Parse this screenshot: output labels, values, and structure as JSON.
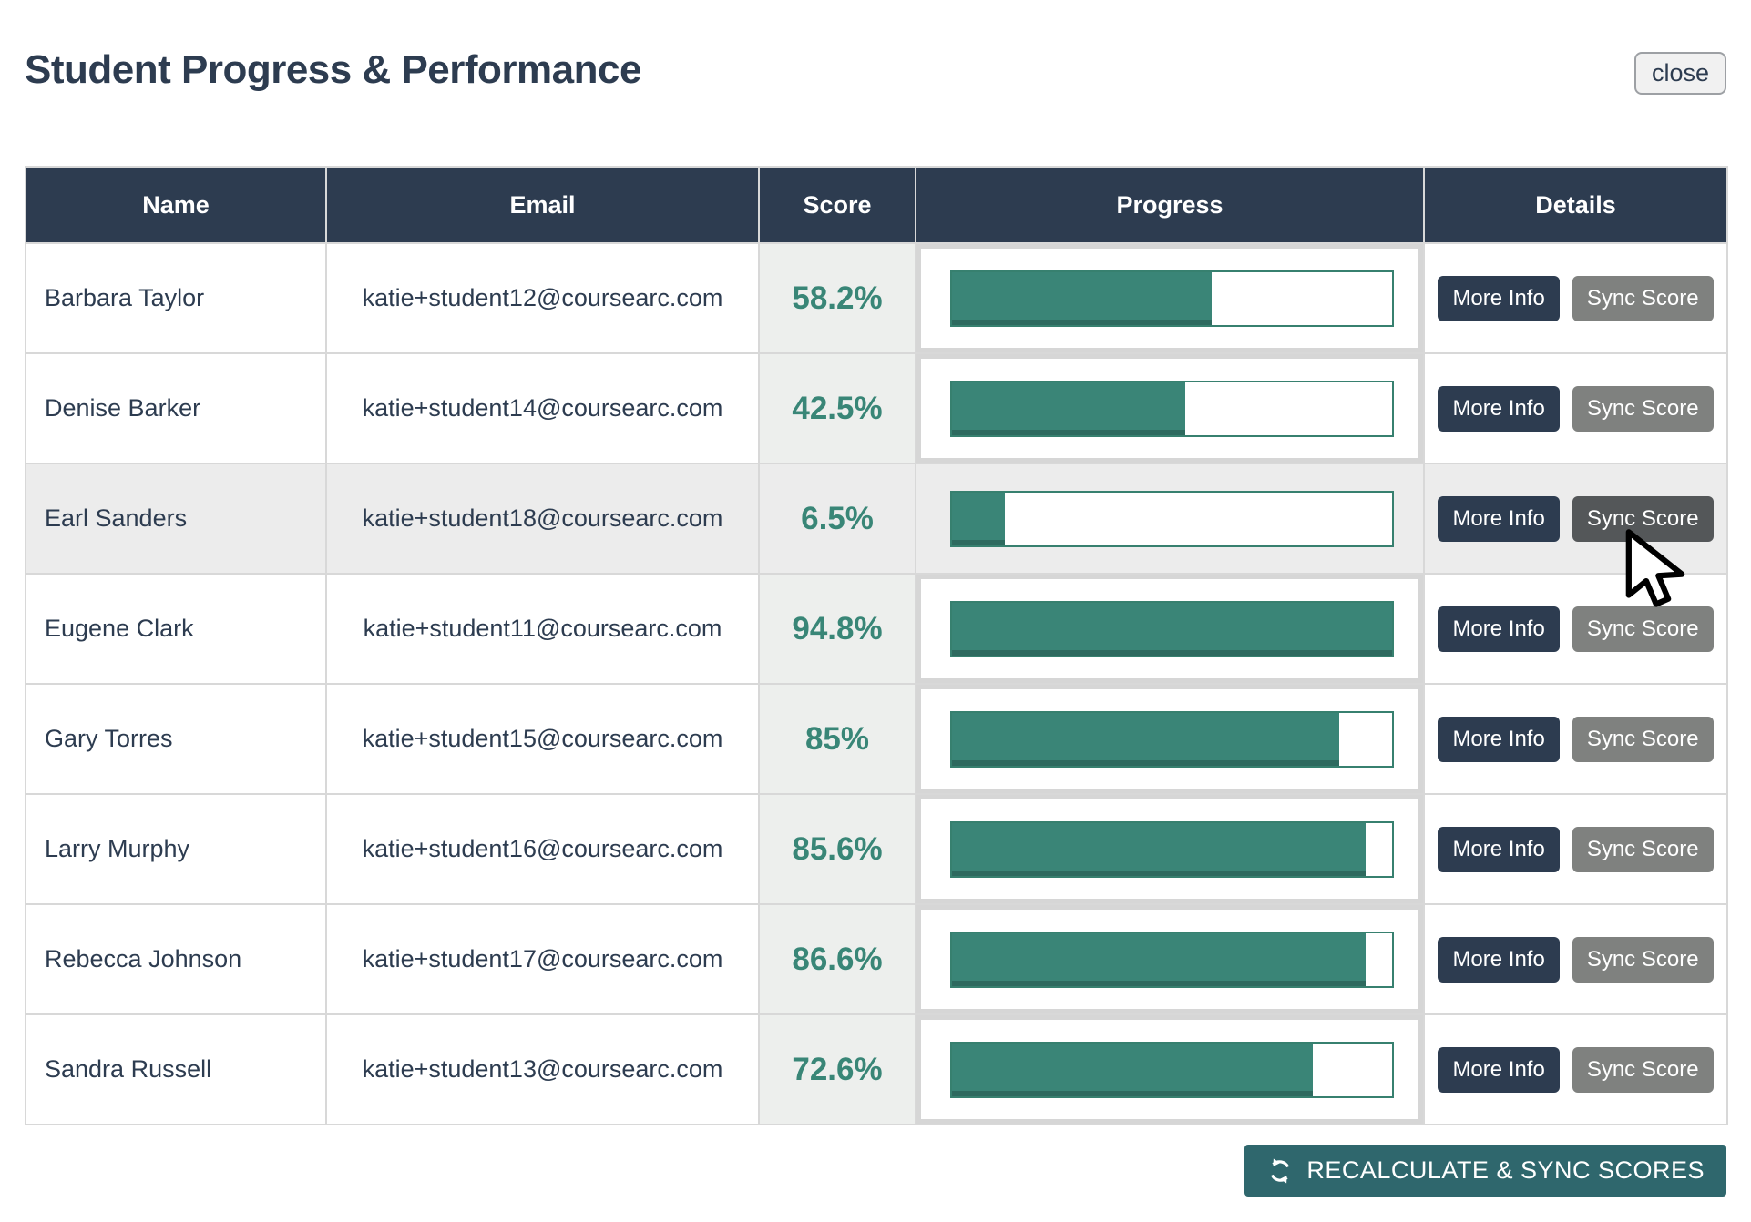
{
  "header": {
    "title": "Student Progress & Performance",
    "close_button": "close"
  },
  "table": {
    "columns": [
      "Name",
      "Email",
      "Score",
      "Progress",
      "Details"
    ],
    "row_buttons": {
      "more_info": "More Info",
      "sync_score": "Sync Score"
    },
    "rows": [
      {
        "name": "Barbara Taylor",
        "email": "katie+student12@coursearc.com",
        "score": "58.2%",
        "progress_pct": 59
      },
      {
        "name": "Denise Barker",
        "email": "katie+student14@coursearc.com",
        "score": "42.5%",
        "progress_pct": 53
      },
      {
        "name": "Earl Sanders",
        "email": "katie+student18@coursearc.com",
        "score": "6.5%",
        "progress_pct": 12
      },
      {
        "name": "Eugene Clark",
        "email": "katie+student11@coursearc.com",
        "score": "94.8%",
        "progress_pct": 100
      },
      {
        "name": "Gary Torres",
        "email": "katie+student15@coursearc.com",
        "score": "85%",
        "progress_pct": 88
      },
      {
        "name": "Larry Murphy",
        "email": "katie+student16@coursearc.com",
        "score": "85.6%",
        "progress_pct": 94
      },
      {
        "name": "Rebecca Johnson",
        "email": "katie+student17@coursearc.com",
        "score": "86.6%",
        "progress_pct": 94
      },
      {
        "name": "Sandra Russell",
        "email": "katie+student13@coursearc.com",
        "score": "72.6%",
        "progress_pct": 82
      }
    ],
    "highlighted_row": "Earl Sanders"
  },
  "footer": {
    "recalc_button": "RECALCULATE & SYNC SCORES",
    "recalc_icon": "refresh-icon"
  },
  "colors": {
    "navy": "#2D3C50",
    "green": "#3A8577",
    "green_dark": "#2F6B5E",
    "teal_button": "#2F676D",
    "gray_button": "#7F817F",
    "gray_button_hover": "#545759",
    "row_highlight": "#ECECEC",
    "score_bg": "#EDEFED",
    "cell_border": "#D8D8D8"
  }
}
